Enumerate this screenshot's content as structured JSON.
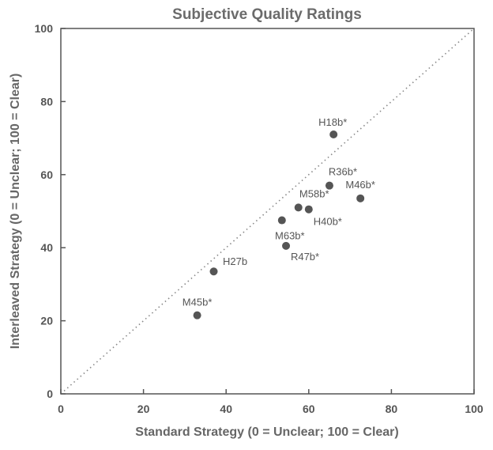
{
  "chart_data": {
    "type": "scatter",
    "title": "Subjective Quality Ratings",
    "xlabel": "Standard Strategy (0 = Unclear; 100 = Clear)",
    "ylabel": "Interleaved Strategy (0 = Unclear; 100 = Clear)",
    "xlim": [
      0,
      100
    ],
    "ylim": [
      0,
      100
    ],
    "xticks": [
      0,
      20,
      40,
      60,
      80,
      100
    ],
    "yticks": [
      0,
      20,
      40,
      60,
      80,
      100
    ],
    "reference_line": "y = x (dotted diagonal)",
    "grid": false,
    "points": [
      {
        "label": "H18b*",
        "x": 66,
        "y": 71
      },
      {
        "label": "R36b*",
        "x": 65,
        "y": 57
      },
      {
        "label": "M46b*",
        "x": 72.5,
        "y": 53.5
      },
      {
        "label": "M58b*",
        "x": 57.5,
        "y": 51
      },
      {
        "label": "H40b*",
        "x": 60,
        "y": 50.5
      },
      {
        "label": "M63b*",
        "x": 53.5,
        "y": 47.5
      },
      {
        "label": "R47b*",
        "x": 54.5,
        "y": 40.5
      },
      {
        "label": "H27b",
        "x": 37,
        "y": 33.5
      },
      {
        "label": "M45b*",
        "x": 33,
        "y": 21.5
      }
    ],
    "colors": {
      "points": "#555555",
      "axes": "#555555",
      "reference_line": "#888888"
    }
  }
}
